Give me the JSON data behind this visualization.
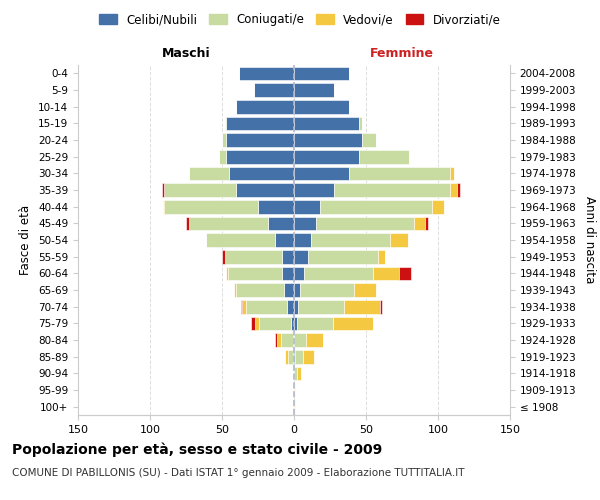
{
  "age_groups": [
    "100+",
    "95-99",
    "90-94",
    "85-89",
    "80-84",
    "75-79",
    "70-74",
    "65-69",
    "60-64",
    "55-59",
    "50-54",
    "45-49",
    "40-44",
    "35-39",
    "30-34",
    "25-29",
    "20-24",
    "15-19",
    "10-14",
    "5-9",
    "0-4"
  ],
  "birth_years": [
    "≤ 1908",
    "1909-1913",
    "1914-1918",
    "1919-1923",
    "1924-1928",
    "1929-1933",
    "1934-1938",
    "1939-1943",
    "1944-1948",
    "1949-1953",
    "1954-1958",
    "1959-1963",
    "1964-1968",
    "1969-1973",
    "1974-1978",
    "1979-1983",
    "1984-1988",
    "1989-1993",
    "1994-1998",
    "1999-2003",
    "2004-2008"
  ],
  "colors": {
    "celibe": "#4472a8",
    "coniugato": "#c8dba0",
    "vedovo": "#f5c842",
    "divorziato": "#cc1111"
  },
  "maschi_celibe": [
    0,
    0,
    0,
    1,
    1,
    2,
    5,
    7,
    8,
    8,
    13,
    18,
    25,
    40,
    45,
    47,
    47,
    47,
    40,
    28,
    38
  ],
  "maschi_coniugato": [
    0,
    0,
    1,
    3,
    8,
    22,
    28,
    33,
    38,
    40,
    48,
    55,
    65,
    50,
    28,
    5,
    3,
    1,
    0,
    0,
    0
  ],
  "maschi_vedovo": [
    0,
    0,
    0,
    2,
    3,
    3,
    3,
    2,
    1,
    0,
    0,
    0,
    1,
    0,
    0,
    0,
    0,
    0,
    0,
    0,
    0
  ],
  "maschi_divorziato": [
    0,
    0,
    0,
    0,
    1,
    3,
    1,
    0,
    0,
    2,
    0,
    2,
    0,
    2,
    0,
    0,
    0,
    0,
    0,
    0,
    0
  ],
  "femmine_celibe": [
    0,
    0,
    0,
    1,
    0,
    2,
    3,
    4,
    7,
    10,
    12,
    15,
    18,
    28,
    38,
    45,
    47,
    45,
    38,
    28,
    38
  ],
  "femmine_coniugato": [
    0,
    0,
    2,
    5,
    8,
    25,
    32,
    38,
    48,
    48,
    55,
    68,
    78,
    80,
    70,
    35,
    10,
    2,
    0,
    0,
    0
  ],
  "femmine_vedovo": [
    1,
    1,
    3,
    8,
    12,
    28,
    25,
    15,
    18,
    5,
    12,
    8,
    8,
    5,
    3,
    0,
    0,
    0,
    0,
    0,
    0
  ],
  "femmine_divorziato": [
    0,
    0,
    0,
    0,
    0,
    0,
    1,
    0,
    8,
    0,
    0,
    2,
    0,
    2,
    0,
    0,
    0,
    0,
    0,
    0,
    0
  ],
  "xlim": 150,
  "xlabel_ticks": [
    -150,
    -100,
    -50,
    0,
    50,
    100,
    150
  ],
  "xlabel_labels": [
    "150",
    "100",
    "50",
    "0",
    "50",
    "100",
    "150"
  ],
  "title": "Popolazione per età, sesso e stato civile - 2009",
  "subtitle": "COMUNE DI PABILLONIS (SU) - Dati ISTAT 1° gennaio 2009 - Elaborazione TUTTITALIA.IT",
  "legend_labels": [
    "Celibi/Nubili",
    "Coniugati/e",
    "Vedovi/e",
    "Divorziati/e"
  ],
  "maschi_label": "Maschi",
  "femmine_label": "Femmine",
  "ylabel_left": "Fasce di età",
  "ylabel_right": "Anni di nascita"
}
